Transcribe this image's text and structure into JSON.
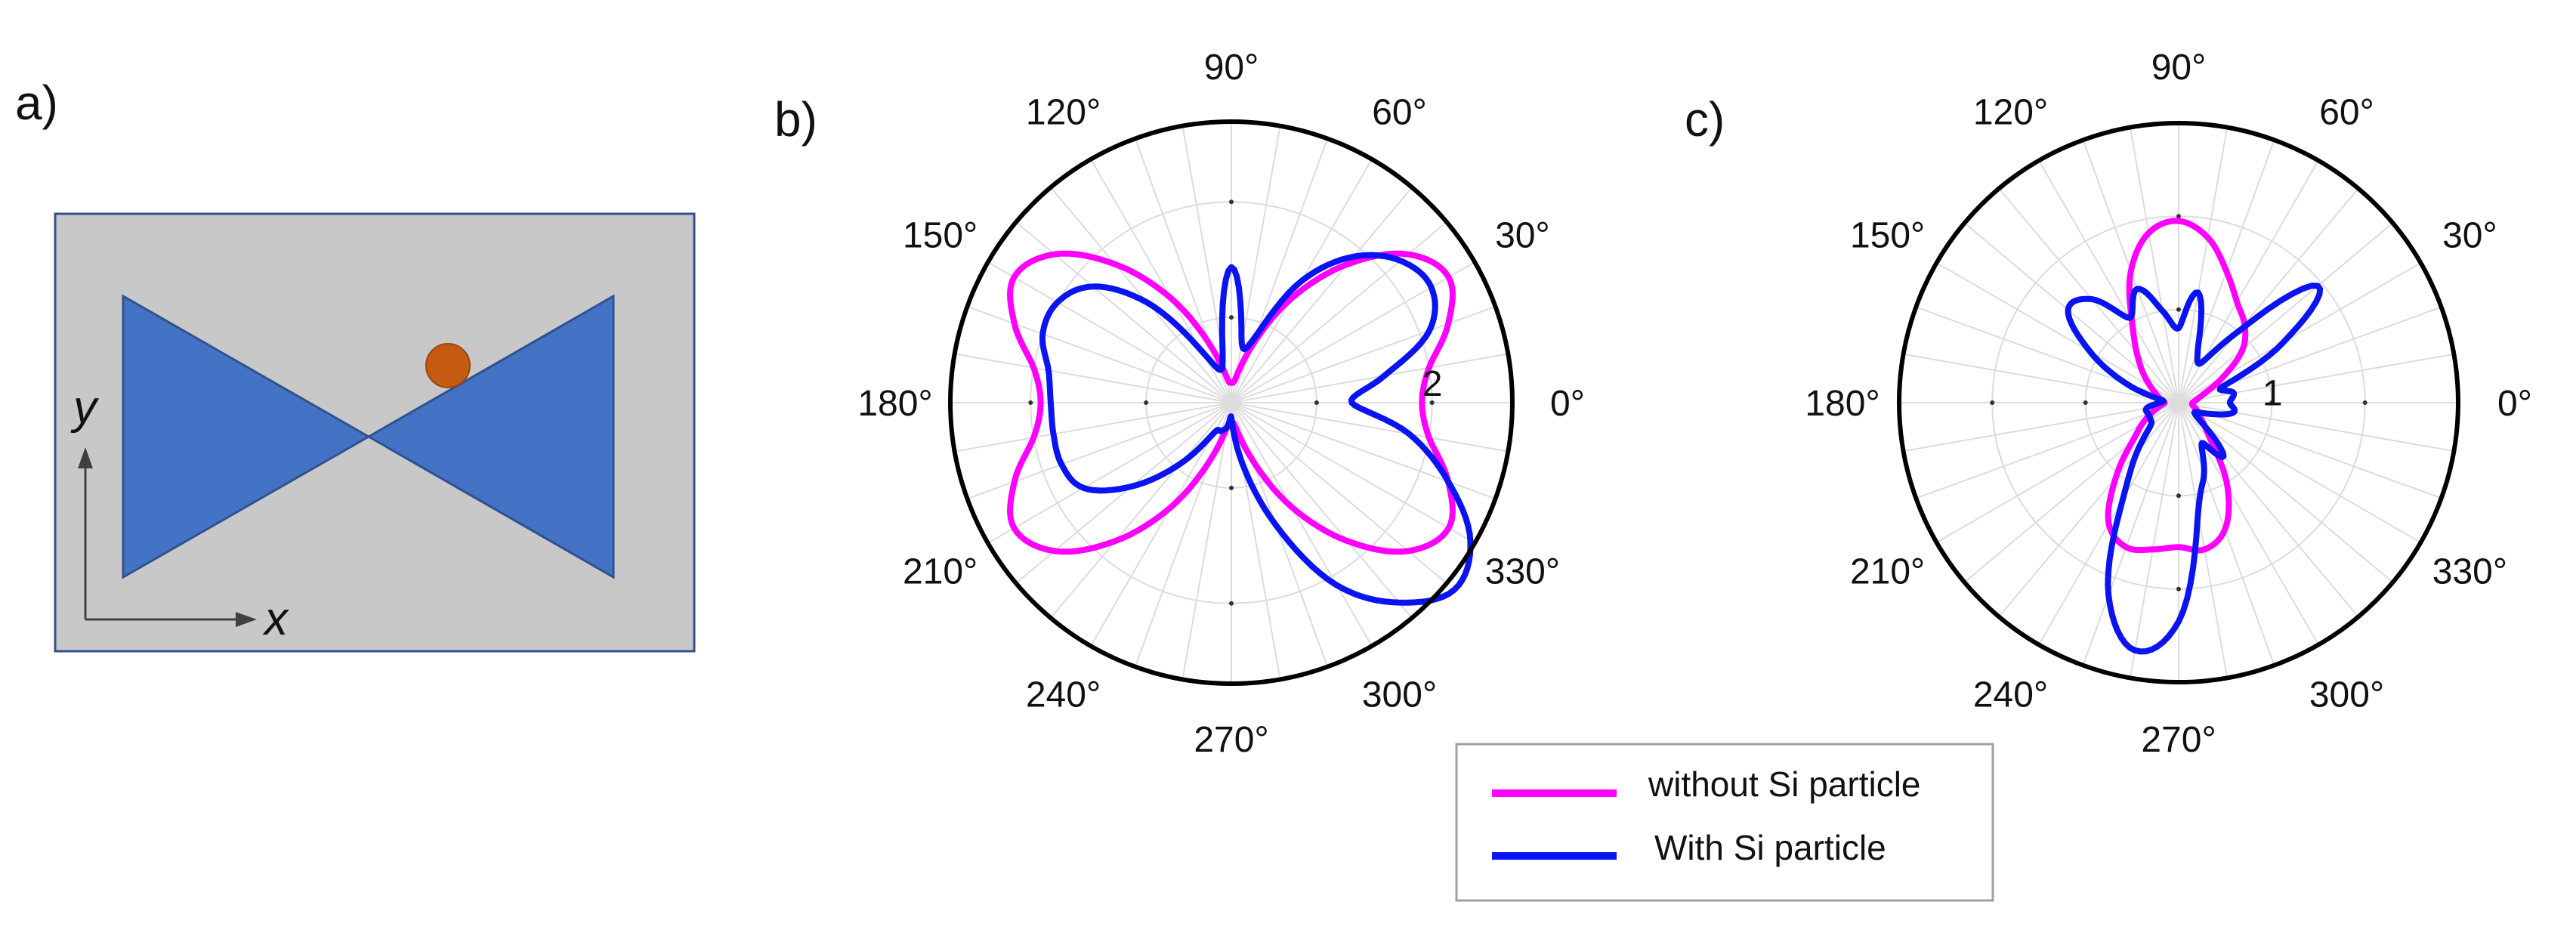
{
  "panels": {
    "a": {
      "label": "a)",
      "x_axis_label": "x",
      "y_axis_label": "y"
    },
    "b": {
      "label": "b)"
    },
    "c": {
      "label": "c)"
    }
  },
  "colors": {
    "without": "#ff00ff",
    "with": "#0a14f0",
    "bowtie": "#4472c4",
    "substrate": "#c8c8c8",
    "particle": "#c55a11"
  },
  "legend": {
    "items": [
      {
        "label": "without Si particle",
        "color": "#ff00ff"
      },
      {
        "label": "With Si particle",
        "color": "#0a14f0"
      }
    ]
  },
  "chart_data": [
    {
      "panel": "b",
      "type": "line",
      "subtype": "polar",
      "angle_unit": "deg",
      "theta_tick_labels": [
        "0°",
        "30°",
        "60°",
        "90°",
        "120°",
        "150°",
        "180°",
        "210°",
        "240°",
        "270°",
        "300°",
        "330°"
      ],
      "radial_tick_labels": [
        "2"
      ],
      "rlim": [
        0,
        2.8
      ],
      "grid": true,
      "series": [
        {
          "name": "without Si particle",
          "theta": [
            0,
            10,
            20,
            30,
            40,
            50,
            60,
            70,
            80,
            90,
            100,
            110,
            120,
            130,
            140,
            150,
            160,
            170,
            180,
            190,
            200,
            210,
            220,
            230,
            240,
            250,
            260,
            270,
            280,
            290,
            300,
            310,
            320,
            330,
            340,
            350
          ],
          "r": [
            1.9,
            2.0,
            2.3,
            2.5,
            2.3,
            1.8,
            1.2,
            0.6,
            0.25,
            0.2,
            0.25,
            0.6,
            1.2,
            1.8,
            2.3,
            2.5,
            2.3,
            2.0,
            1.9,
            2.0,
            2.3,
            2.5,
            2.3,
            1.8,
            1.2,
            0.6,
            0.25,
            0.2,
            0.25,
            0.6,
            1.2,
            1.8,
            2.3,
            2.5,
            2.3,
            2.0
          ]
        },
        {
          "name": "With Si particle",
          "theta": [
            0,
            10,
            20,
            30,
            40,
            50,
            60,
            70,
            80,
            90,
            100,
            110,
            120,
            130,
            140,
            150,
            160,
            170,
            180,
            190,
            200,
            210,
            220,
            230,
            240,
            250,
            260,
            270,
            280,
            290,
            300,
            310,
            320,
            330,
            340,
            350
          ],
          "r": [
            1.2,
            1.55,
            2.1,
            2.3,
            2.2,
            1.9,
            1.4,
            0.7,
            0.6,
            1.35,
            0.5,
            0.35,
            0.6,
            1.3,
            1.8,
            2.0,
            2.0,
            1.85,
            1.8,
            1.8,
            1.8,
            1.7,
            1.3,
            0.8,
            0.35,
            0.3,
            0.25,
            0.15,
            0.6,
            1.3,
            2.1,
            2.6,
            2.9,
            2.75,
            2.3,
            1.8
          ]
        }
      ]
    },
    {
      "panel": "c",
      "type": "line",
      "subtype": "polar",
      "angle_unit": "deg",
      "theta_tick_labels": [
        "0°",
        "30°",
        "60°",
        "90°",
        "120°",
        "150°",
        "180°",
        "210°",
        "240°",
        "270°",
        "300°",
        "330°"
      ],
      "radial_tick_labels": [
        "1"
      ],
      "rlim": [
        0,
        3.0
      ],
      "grid": true,
      "series": [
        {
          "name": "without Si particle",
          "theta": [
            0,
            10,
            20,
            30,
            40,
            50,
            60,
            70,
            80,
            90,
            100,
            110,
            120,
            130,
            140,
            150,
            160,
            170,
            180,
            190,
            200,
            210,
            220,
            230,
            240,
            250,
            260,
            270,
            280,
            290,
            300,
            310,
            320,
            330,
            340,
            350
          ],
          "r": [
            0.15,
            0.2,
            0.3,
            0.55,
            0.9,
            1.1,
            1.25,
            1.5,
            1.8,
            1.95,
            1.85,
            1.5,
            1.0,
            0.7,
            0.5,
            0.35,
            0.25,
            0.2,
            0.15,
            0.2,
            0.3,
            0.45,
            0.65,
            1.05,
            1.5,
            1.65,
            1.6,
            1.55,
            1.6,
            1.45,
            1.05,
            0.55,
            0.35,
            0.25,
            0.2,
            0.15
          ]
        },
        {
          "name": "With Si particle",
          "theta": [
            0,
            10,
            20,
            30,
            40,
            50,
            60,
            70,
            80,
            90,
            100,
            110,
            120,
            130,
            140,
            150,
            160,
            170,
            180,
            190,
            200,
            210,
            220,
            230,
            240,
            250,
            260,
            270,
            280,
            290,
            300,
            310,
            320,
            330,
            340,
            350
          ],
          "r": [
            0.55,
            0.6,
            0.5,
            1.3,
            1.95,
            1.0,
            0.5,
            0.6,
            1.2,
            0.8,
            1.0,
            1.3,
            1.05,
            1.45,
            1.55,
            1.1,
            0.6,
            0.2,
            0.2,
            0.35,
            0.35,
            0.35,
            0.4,
            0.7,
            1.2,
            2.2,
            2.7,
            2.35,
            1.2,
            0.8,
            0.5,
            0.75,
            0.3,
            0.2,
            0.35,
            0.6
          ]
        }
      ]
    }
  ]
}
